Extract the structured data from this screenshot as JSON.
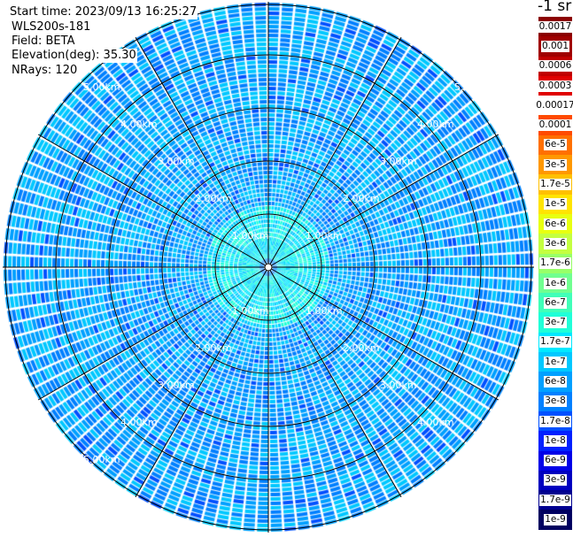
{
  "info": {
    "start_time": "Start time: 2023/09/13 16:25:27",
    "instrument": "WLS200s-181",
    "field": "Field: BETA",
    "elevation": "Elevation(deg): 35.30",
    "nrays": "NRays: 120"
  },
  "chart_data": {
    "type": "heatmap",
    "subtype": "polar PPI scan",
    "field": "BETA",
    "elevation_deg": 35.3,
    "n_rays": 120,
    "range_rings_km": [
      1,
      2,
      3,
      4,
      5
    ],
    "ring_labels": [
      "1.00km",
      "2.00km",
      "3.00km",
      "4.00km",
      "5.00km"
    ],
    "max_range_km": 5,
    "spoke_interval_deg": 30,
    "typical_values": {
      "near_center": "1e-7 to 3e-7",
      "outer": "1e-8 to 6e-8"
    },
    "colorbar": {
      "title": "-1 sr",
      "scale": "log",
      "labels": [
        "0.0017",
        "0.001",
        "0.0006",
        "0.0003",
        "0.00017",
        "0.0001",
        "6e-5",
        "3e-5",
        "1.7e-5",
        "1e-5",
        "6e-6",
        "3e-6",
        "1.7e-6",
        "1e-6",
        "6e-7",
        "3e-7",
        "1.7e-7",
        "1e-7",
        "6e-8",
        "3e-8",
        "1.7e-8",
        "1e-8",
        "6e-9",
        "3e-9",
        "1.7e-9",
        "1e-9"
      ],
      "colors": [
        "#8b0000",
        "#a00000",
        "#c00000",
        "#e00000",
        "#ff2800",
        "#ff4a00",
        "#ff7000",
        "#ff9800",
        "#ffc000",
        "#ffe400",
        "#e8ff10",
        "#c4ff40",
        "#98ff68",
        "#70ff90",
        "#40ffb8",
        "#20ffd8",
        "#00e8ff",
        "#00c8ff",
        "#00a0ff",
        "#0080ff",
        "#0050ff",
        "#0020ff",
        "#0000e8",
        "#0000c0",
        "#000090",
        "#000060"
      ]
    }
  }
}
